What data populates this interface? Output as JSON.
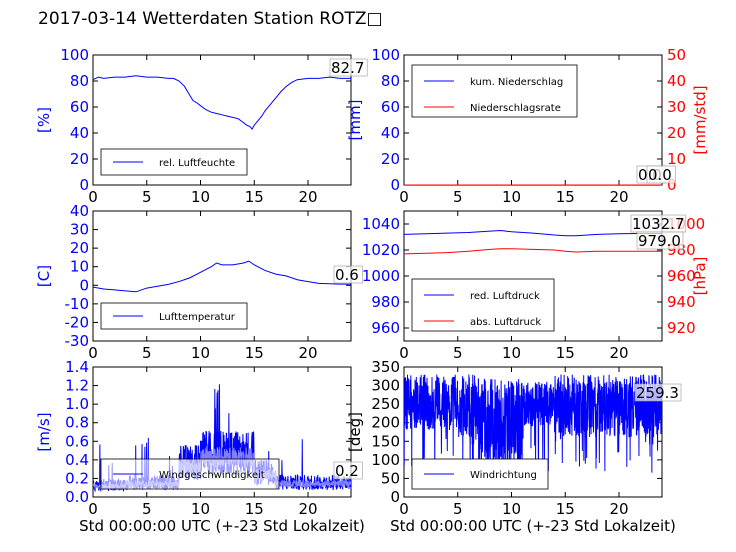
{
  "title": "2017-03-14 Wetterdaten Station ROTZ□",
  "colors": {
    "blue": "#0000ff",
    "red": "#ff0000",
    "lightblue": "#8080ff",
    "black": "#000000"
  },
  "chart_data": [
    {
      "id": "humidity",
      "type": "line",
      "xlim": [
        0,
        24
      ],
      "xticks": [
        0,
        5,
        10,
        15,
        20
      ],
      "ylim": [
        0,
        100
      ],
      "yticks": [
        0,
        20,
        40,
        60,
        80,
        100
      ],
      "ylabel": "[%]",
      "ylabel_color": "blue",
      "series": [
        {
          "name": "rel. Luftfeuchte",
          "color": "blue",
          "x": [
            0,
            0.5,
            1,
            2,
            3,
            4,
            5,
            6,
            7,
            7.5,
            8,
            8.5,
            9,
            9.3,
            9.7,
            10,
            10.5,
            11,
            11.5,
            12,
            12.5,
            13,
            13.5,
            14,
            14.3,
            14.6,
            14.8,
            15,
            15.3,
            15.7,
            16,
            16.5,
            17,
            17.5,
            18,
            18.5,
            19,
            20,
            21,
            22,
            23,
            24
          ],
          "y": [
            81,
            83,
            82,
            83,
            83,
            84,
            83,
            83,
            82,
            82,
            80,
            76,
            69,
            65,
            63,
            61,
            58,
            56,
            55,
            54,
            53,
            52,
            51,
            48,
            46,
            45,
            43,
            46,
            49,
            53,
            57,
            62,
            67,
            72,
            76,
            79,
            81,
            82,
            82,
            83,
            82,
            82
          ]
        }
      ],
      "annotation": "82.7",
      "legend": "lower-left"
    },
    {
      "id": "precipitation",
      "type": "line",
      "xlim": [
        0,
        24
      ],
      "xticks": [
        0,
        5,
        10,
        15,
        20
      ],
      "ylim": [
        0,
        100
      ],
      "yticks": [
        0,
        20,
        40,
        60,
        80,
        100
      ],
      "ylabel": "[mm]",
      "ylabel_color": "blue",
      "y2lim": [
        0,
        50
      ],
      "y2ticks": [
        0,
        10,
        20,
        30,
        40,
        50
      ],
      "y2label": "[mm/std]",
      "y2label_color": "red",
      "series": [
        {
          "name": "kum. Niederschlag",
          "color": "blue",
          "x": [
            0,
            24
          ],
          "y": [
            0,
            0
          ]
        },
        {
          "name": "Niederschlagsrate",
          "color": "red",
          "x": [
            0,
            24
          ],
          "y": [
            0,
            0
          ]
        }
      ],
      "annotations": [
        "0.0",
        "0.0"
      ],
      "legend": "upper-left"
    },
    {
      "id": "temperature",
      "type": "line",
      "xlim": [
        0,
        24
      ],
      "xticks": [
        0,
        5,
        10,
        15,
        20
      ],
      "ylim": [
        -30,
        40
      ],
      "yticks": [
        -30,
        -20,
        -10,
        0,
        10,
        20,
        30,
        40
      ],
      "ylabel": "[C]",
      "ylabel_color": "blue",
      "series": [
        {
          "name": "Lufttemperatur",
          "color": "blue",
          "x": [
            0,
            1,
            2,
            3,
            4,
            5,
            6,
            7,
            8,
            9,
            10,
            11,
            11.5,
            12,
            13,
            14,
            14.5,
            15,
            16,
            17,
            18,
            19,
            20,
            21,
            22,
            23,
            24
          ],
          "y": [
            -1,
            -2,
            -2.5,
            -3,
            -3.5,
            -1.5,
            -0.5,
            0.5,
            2,
            4,
            7,
            10,
            12,
            11,
            11,
            12,
            13,
            11,
            8,
            6,
            5,
            3,
            2,
            1,
            0.8,
            0.6,
            0.6
          ]
        }
      ],
      "annotation": "0.6",
      "legend": "lower-left"
    },
    {
      "id": "pressure",
      "type": "line",
      "xlim": [
        0,
        24
      ],
      "xticks": [
        0,
        5,
        10,
        15,
        20
      ],
      "ylim": [
        950,
        1050
      ],
      "yticks": [
        960,
        980,
        1000,
        1020,
        1040
      ],
      "ylabel": "",
      "ylabel_color": "blue",
      "y2lim": [
        910,
        1010
      ],
      "y2ticks": [
        920,
        940,
        960,
        980,
        1000
      ],
      "y2label": "[hPa]",
      "y2label_color": "red",
      "series": [
        {
          "name": "red. Luftdruck",
          "color": "blue",
          "x": [
            0,
            2,
            4,
            6,
            8,
            9,
            10,
            12,
            14,
            15,
            16,
            18,
            20,
            22,
            24
          ],
          "y": [
            1032,
            1032.5,
            1033,
            1033.5,
            1034.5,
            1035,
            1034,
            1033,
            1031.5,
            1031,
            1031,
            1032,
            1032.5,
            1032.7,
            1032.7
          ]
        },
        {
          "name": "abs. Luftdruck",
          "color": "red",
          "x": [
            0,
            2,
            4,
            6,
            8,
            9,
            10,
            12,
            14,
            15,
            16,
            18,
            20,
            22,
            24
          ],
          "y": [
            977,
            977.5,
            978,
            979,
            980.5,
            981,
            981,
            980.5,
            980,
            979,
            978.5,
            979,
            979,
            979,
            979
          ]
        }
      ],
      "annotations": [
        "1032.7",
        "979.0"
      ],
      "legend": "lower-left"
    },
    {
      "id": "wind-speed",
      "type": "line",
      "xlim": [
        0,
        24
      ],
      "xticks": [
        0,
        5,
        10,
        15,
        20
      ],
      "ylim": [
        0,
        1.4
      ],
      "yticks": [
        0.0,
        0.2,
        0.4,
        0.6,
        0.8,
        1.0,
        1.2,
        1.4
      ],
      "ylabel": "[m/s]",
      "ylabel_color": "blue",
      "series": [
        {
          "name": "Windgeschwindigkeit",
          "color": "blue",
          "noise": "wind-speed"
        },
        {
          "name": "",
          "color": "lightblue",
          "noise": "wind-speed-mean"
        }
      ],
      "annotation": "0.2",
      "legend": "lower-left"
    },
    {
      "id": "wind-direction",
      "type": "line",
      "xlim": [
        0,
        24
      ],
      "xticks": [
        0,
        5,
        10,
        15,
        20
      ],
      "ylim": [
        0,
        350
      ],
      "yticks": [
        0,
        50,
        100,
        150,
        200,
        250,
        300,
        350
      ],
      "ylabel": "[deg]",
      "ylabel_color": "black",
      "series": [
        {
          "name": "Windrichtung",
          "color": "blue",
          "noise": "wind-direction"
        }
      ],
      "annotation": "259.3",
      "legend": "lower-left"
    }
  ],
  "xlabel_bottom": "Std 00:00:00 UTC (+-23 Std Lokalzeit)"
}
